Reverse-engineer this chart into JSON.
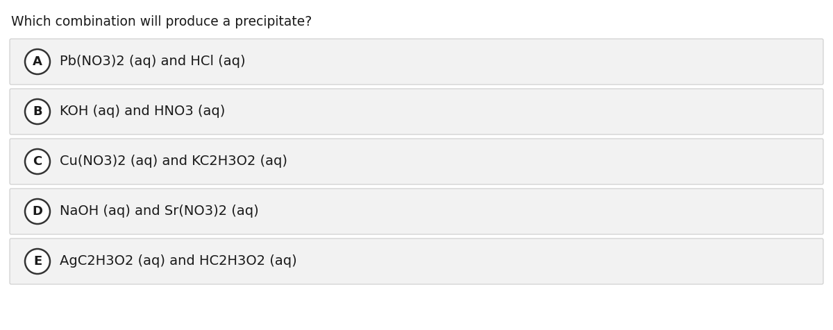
{
  "title": "Which combination will produce a precipitate?",
  "options": [
    {
      "label": "A",
      "text": "Pb(NO3)2 (aq) and HCl (aq)"
    },
    {
      "label": "B",
      "text": "KOH (aq) and HNO3 (aq)"
    },
    {
      "label": "C",
      "text": "Cu(NO3)2 (aq) and KC2H3O2 (aq)"
    },
    {
      "label": "D",
      "text": "NaOH (aq) and Sr(NO3)2 (aq)"
    },
    {
      "label": "E",
      "text": "AgC2H3O2 (aq) and HC2H3O2 (aq)"
    }
  ],
  "bg_color": "#ffffff",
  "option_bg_color": "#f2f2f2",
  "option_border_color": "#cccccc",
  "text_color": "#1a1a1a",
  "circle_edge_color": "#333333",
  "circle_face_color": "#ffffff",
  "title_fontsize": 13.5,
  "option_fontsize": 14,
  "label_fontsize": 13,
  "fig_width": 12.0,
  "fig_height": 4.76,
  "dpi": 100
}
